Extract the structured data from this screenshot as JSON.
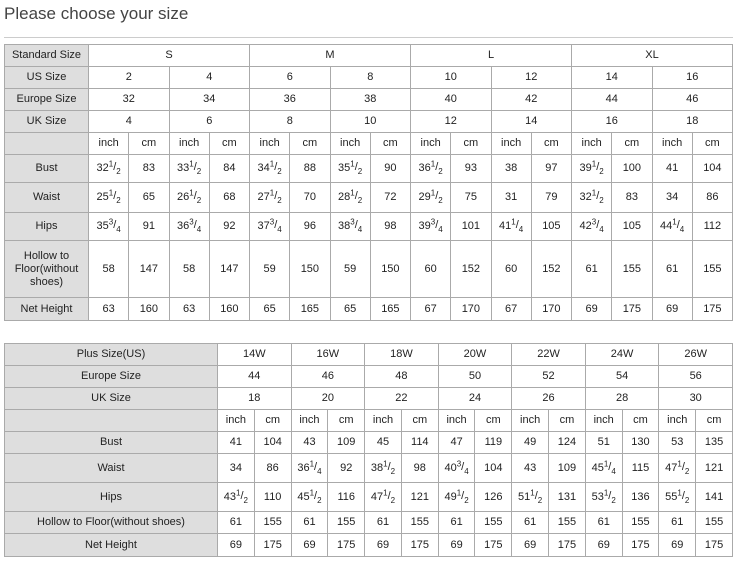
{
  "header": {
    "title": "Please choose your size"
  },
  "table1": {
    "header": {
      "label": "Standard Size",
      "groups": [
        "S",
        "M",
        "L",
        "XL"
      ]
    },
    "size_rows": [
      {
        "label": "US Size",
        "values": [
          2,
          4,
          6,
          8,
          10,
          12,
          14,
          16
        ]
      },
      {
        "label": "Europe Size",
        "values": [
          32,
          34,
          36,
          38,
          40,
          42,
          44,
          46
        ]
      },
      {
        "label": "UK Size",
        "values": [
          4,
          6,
          8,
          10,
          12,
          14,
          16,
          18
        ]
      }
    ],
    "units": [
      "inch",
      "cm"
    ],
    "rows": [
      {
        "label": "Bust",
        "cells": [
          {
            "whole": 32,
            "num": 1,
            "den": 2
          },
          83,
          {
            "whole": 33,
            "num": 1,
            "den": 2
          },
          84,
          {
            "whole": 34,
            "num": 1,
            "den": 2
          },
          88,
          {
            "whole": 35,
            "num": 1,
            "den": 2
          },
          90,
          {
            "whole": 36,
            "num": 1,
            "den": 2
          },
          93,
          38,
          97,
          {
            "whole": 39,
            "num": 1,
            "den": 2
          },
          100,
          41,
          104
        ]
      },
      {
        "label": "Waist",
        "cells": [
          {
            "whole": 25,
            "num": 1,
            "den": 2
          },
          65,
          {
            "whole": 26,
            "num": 1,
            "den": 2
          },
          68,
          {
            "whole": 27,
            "num": 1,
            "den": 2
          },
          70,
          {
            "whole": 28,
            "num": 1,
            "den": 2
          },
          72,
          {
            "whole": 29,
            "num": 1,
            "den": 2
          },
          75,
          31,
          79,
          {
            "whole": 32,
            "num": 1,
            "den": 2
          },
          83,
          34,
          86
        ]
      },
      {
        "label": "Hips",
        "cells": [
          {
            "whole": 35,
            "num": 3,
            "den": 4
          },
          91,
          {
            "whole": 36,
            "num": 3,
            "den": 4
          },
          92,
          {
            "whole": 37,
            "num": 3,
            "den": 4
          },
          96,
          {
            "whole": 38,
            "num": 3,
            "den": 4
          },
          98,
          {
            "whole": 39,
            "num": 3,
            "den": 4
          },
          101,
          {
            "whole": 41,
            "num": 1,
            "den": 4
          },
          105,
          {
            "whole": 42,
            "num": 3,
            "den": 4
          },
          105,
          {
            "whole": 44,
            "num": 1,
            "den": 4
          },
          112
        ]
      },
      {
        "label": "Hollow to Floor(without shoes)",
        "cells": [
          58,
          147,
          58,
          147,
          59,
          150,
          59,
          150,
          60,
          152,
          60,
          152,
          61,
          155,
          61,
          155
        ]
      },
      {
        "label": "Net Height",
        "cells": [
          63,
          160,
          63,
          160,
          65,
          165,
          65,
          165,
          67,
          170,
          67,
          170,
          69,
          175,
          69,
          175
        ]
      }
    ]
  },
  "table2": {
    "size_rows": [
      {
        "label": "Plus Size(US)",
        "values": [
          "14W",
          "16W",
          "18W",
          "20W",
          "22W",
          "24W",
          "26W"
        ]
      },
      {
        "label": "Europe Size",
        "values": [
          44,
          46,
          48,
          50,
          52,
          54,
          56
        ]
      },
      {
        "label": "UK Size",
        "values": [
          18,
          20,
          22,
          24,
          26,
          28,
          30
        ]
      }
    ],
    "units": [
      "inch",
      "cm"
    ],
    "rows": [
      {
        "label": "Bust",
        "cells": [
          41,
          104,
          43,
          109,
          45,
          114,
          47,
          119,
          49,
          124,
          51,
          130,
          53,
          135
        ]
      },
      {
        "label": "Waist",
        "cells": [
          34,
          86,
          {
            "whole": 36,
            "num": 1,
            "den": 4
          },
          92,
          {
            "whole": 38,
            "num": 1,
            "den": 2
          },
          98,
          {
            "whole": 40,
            "num": 3,
            "den": 4
          },
          104,
          43,
          109,
          {
            "whole": 45,
            "num": 1,
            "den": 4
          },
          115,
          {
            "whole": 47,
            "num": 1,
            "den": 2
          },
          121
        ]
      },
      {
        "label": "Hips",
        "cells": [
          {
            "whole": 43,
            "num": 1,
            "den": 2
          },
          110,
          {
            "whole": 45,
            "num": 1,
            "den": 2
          },
          116,
          {
            "whole": 47,
            "num": 1,
            "den": 2
          },
          121,
          {
            "whole": 49,
            "num": 1,
            "den": 2
          },
          126,
          {
            "whole": 51,
            "num": 1,
            "den": 2
          },
          131,
          {
            "whole": 53,
            "num": 1,
            "den": 2
          },
          136,
          {
            "whole": 55,
            "num": 1,
            "den": 2
          },
          141
        ]
      },
      {
        "label": "Hollow to Floor(without shoes)",
        "cells": [
          61,
          155,
          61,
          155,
          61,
          155,
          61,
          155,
          61,
          155,
          61,
          155,
          61,
          155
        ]
      },
      {
        "label": "Net Height",
        "cells": [
          69,
          175,
          69,
          175,
          69,
          175,
          69,
          175,
          69,
          175,
          69,
          175,
          69,
          175
        ]
      }
    ]
  }
}
